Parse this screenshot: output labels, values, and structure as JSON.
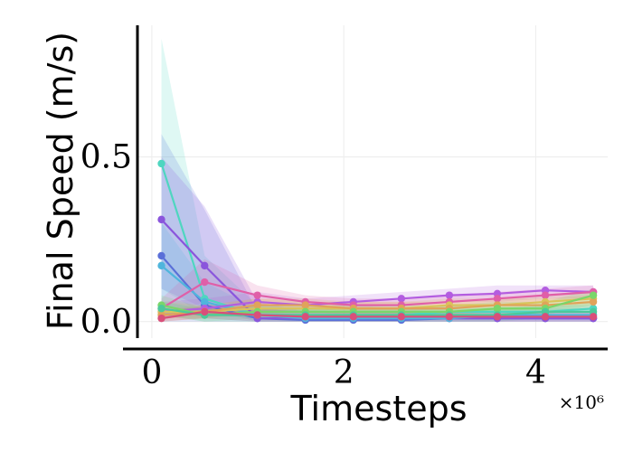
{
  "chart_data": {
    "type": "line",
    "title": "",
    "xlabel": "Timesteps",
    "ylabel": "Final Speed (m/s)",
    "x_multiplier_label": "×10⁶",
    "xlim": [
      -0.15,
      4.75
    ],
    "ylim": [
      -0.05,
      0.9
    ],
    "x_ticks": [
      0,
      2,
      4
    ],
    "x_tick_labels": [
      "0",
      "2",
      "4"
    ],
    "y_ticks": [
      0.0,
      0.5
    ],
    "y_tick_labels": [
      "0.0",
      "0.5"
    ],
    "grid": true,
    "legend": "none",
    "x": [
      0.1,
      0.55,
      1.1,
      1.6,
      2.1,
      2.6,
      3.1,
      3.6,
      4.1,
      4.6
    ],
    "series": [
      {
        "color": "#4fd6c0",
        "values": [
          0.48,
          0.07,
          0.02,
          0.02,
          0.02,
          0.02,
          0.03,
          0.03,
          0.03,
          0.04
        ],
        "band_upper": [
          0.86,
          0.2,
          0.05,
          0.04,
          0.04,
          0.04,
          0.05,
          0.05,
          0.05,
          0.06
        ],
        "band_lower": [
          0.1,
          0.02,
          0.01,
          0.01,
          0.01,
          0.01,
          0.01,
          0.01,
          0.01,
          0.02
        ]
      },
      {
        "color": "#5a6fd8",
        "values": [
          0.2,
          0.05,
          0.01,
          0.005,
          0.005,
          0.005,
          0.01,
          0.01,
          0.01,
          0.01
        ],
        "band_upper": [
          0.57,
          0.34,
          0.03,
          0.02,
          0.02,
          0.02,
          0.02,
          0.02,
          0.02,
          0.02
        ],
        "band_lower": [
          0.0,
          0.0,
          0.0,
          0.0,
          0.0,
          0.0,
          0.0,
          0.0,
          0.0,
          0.0
        ]
      },
      {
        "color": "#8a55dc",
        "values": [
          0.31,
          0.17,
          0.01,
          0.01,
          0.01,
          0.01,
          0.01,
          0.01,
          0.01,
          0.01
        ],
        "band_upper": [
          0.5,
          0.35,
          0.06,
          0.03,
          0.03,
          0.03,
          0.03,
          0.03,
          0.03,
          0.03
        ],
        "band_lower": [
          0.1,
          0.04,
          0.0,
          0.0,
          0.0,
          0.0,
          0.0,
          0.0,
          0.0,
          0.0
        ]
      },
      {
        "color": "#4fb5dc",
        "values": [
          0.17,
          0.06,
          0.02,
          0.01,
          0.01,
          0.01,
          0.01,
          0.02,
          0.02,
          0.02
        ],
        "band_upper": [
          0.3,
          0.12,
          0.04,
          0.03,
          0.03,
          0.03,
          0.03,
          0.04,
          0.04,
          0.04
        ],
        "band_lower": [
          0.05,
          0.01,
          0.0,
          0.0,
          0.0,
          0.0,
          0.0,
          0.0,
          0.0,
          0.0
        ]
      },
      {
        "color": "#b35de0",
        "values": [
          0.03,
          0.04,
          0.06,
          0.05,
          0.06,
          0.07,
          0.08,
          0.085,
          0.095,
          0.09
        ],
        "band_upper": [
          0.06,
          0.07,
          0.09,
          0.07,
          0.08,
          0.09,
          0.1,
          0.11,
          0.11,
          0.11
        ],
        "band_lower": [
          0.01,
          0.02,
          0.03,
          0.03,
          0.04,
          0.05,
          0.06,
          0.06,
          0.07,
          0.07
        ]
      },
      {
        "color": "#e05fa8",
        "values": [
          0.04,
          0.12,
          0.08,
          0.06,
          0.05,
          0.05,
          0.06,
          0.07,
          0.08,
          0.09
        ],
        "band_upper": [
          0.07,
          0.19,
          0.11,
          0.08,
          0.07,
          0.07,
          0.08,
          0.09,
          0.1,
          0.11
        ],
        "band_lower": [
          0.01,
          0.06,
          0.05,
          0.04,
          0.03,
          0.03,
          0.04,
          0.05,
          0.06,
          0.07
        ]
      },
      {
        "color": "#d9c45a",
        "values": [
          0.03,
          0.03,
          0.04,
          0.04,
          0.04,
          0.04,
          0.05,
          0.05,
          0.06,
          0.07
        ],
        "band_upper": [
          0.06,
          0.05,
          0.07,
          0.06,
          0.06,
          0.06,
          0.07,
          0.07,
          0.08,
          0.09
        ],
        "band_lower": [
          0.01,
          0.01,
          0.02,
          0.02,
          0.02,
          0.02,
          0.03,
          0.03,
          0.04,
          0.05
        ]
      },
      {
        "color": "#e0a35a",
        "values": [
          0.02,
          0.03,
          0.05,
          0.05,
          0.04,
          0.04,
          0.04,
          0.05,
          0.05,
          0.06
        ],
        "band_upper": [
          0.04,
          0.05,
          0.07,
          0.07,
          0.06,
          0.06,
          0.06,
          0.07,
          0.07,
          0.08
        ],
        "band_lower": [
          0.0,
          0.01,
          0.03,
          0.03,
          0.02,
          0.02,
          0.02,
          0.03,
          0.03,
          0.04
        ]
      },
      {
        "color": "#7ad66a",
        "values": [
          0.05,
          0.02,
          0.03,
          0.03,
          0.03,
          0.03,
          0.03,
          0.04,
          0.04,
          0.08
        ],
        "band_upper": [
          0.08,
          0.04,
          0.05,
          0.05,
          0.05,
          0.05,
          0.05,
          0.06,
          0.06,
          0.1
        ],
        "band_lower": [
          0.02,
          0.0,
          0.01,
          0.01,
          0.01,
          0.01,
          0.01,
          0.02,
          0.02,
          0.05
        ]
      },
      {
        "color": "#4cc99a",
        "values": [
          0.04,
          0.02,
          0.02,
          0.02,
          0.02,
          0.02,
          0.02,
          0.02,
          0.03,
          0.03
        ],
        "band_upper": [
          0.06,
          0.04,
          0.04,
          0.04,
          0.04,
          0.04,
          0.04,
          0.04,
          0.05,
          0.05
        ],
        "band_lower": [
          0.02,
          0.0,
          0.0,
          0.0,
          0.0,
          0.0,
          0.0,
          0.0,
          0.01,
          0.01
        ]
      },
      {
        "color": "#d94f7a",
        "values": [
          0.01,
          0.03,
          0.02,
          0.015,
          0.015,
          0.015,
          0.015,
          0.015,
          0.015,
          0.015
        ],
        "band_upper": [
          0.03,
          0.05,
          0.04,
          0.03,
          0.03,
          0.03,
          0.03,
          0.03,
          0.03,
          0.03
        ],
        "band_lower": [
          0.0,
          0.01,
          0.0,
          0.0,
          0.0,
          0.0,
          0.0,
          0.0,
          0.0,
          0.0
        ]
      }
    ]
  }
}
